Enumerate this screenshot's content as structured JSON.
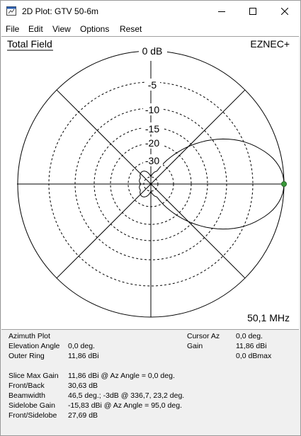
{
  "window": {
    "title": "2D Plot: GTV 50-6m"
  },
  "menu": [
    "File",
    "Edit",
    "View",
    "Options",
    "Reset"
  ],
  "plot": {
    "field_label": "Total Field",
    "brand": "EZNEC+",
    "frequency": "50,1 MHz",
    "ring_labels": [
      "0 dB",
      "-5",
      "-10",
      "-15",
      "-20",
      "-30"
    ]
  },
  "info": {
    "plot_type": "Azimuth Plot",
    "elevation_label": "Elevation Angle",
    "elevation_value": "0,0 deg.",
    "outer_ring_label": "Outer Ring",
    "outer_ring_value": "11,86 dBi",
    "cursor_az_label": "Cursor Az",
    "cursor_az_value": "0,0 deg.",
    "gain_label": "Gain",
    "gain_dbi": "11,86 dBi",
    "gain_dbmax": "0,0 dBmax",
    "slice_max_label": "Slice Max Gain",
    "slice_max_value": "11,86 dBi @ Az Angle = 0,0 deg.",
    "front_back_label": "Front/Back",
    "front_back_value": "30,63 dB",
    "beamwidth_label": "Beamwidth",
    "beamwidth_value": "46,5 deg.; -3dB @ 336,7, 23,2 deg.",
    "sidelobe_gain_label": "Sidelobe Gain",
    "sidelobe_gain_value": "-15,83 dBi @ Az Angle = 95,0 deg.",
    "front_sidelobe_label": "Front/Sidelobe",
    "front_sidelobe_value": "27,69 dB"
  },
  "colors": {
    "trace": "#000000",
    "grid": "#000000",
    "cursor": "#3a9a3a"
  },
  "icons": {
    "app": "plot-window-icon",
    "minimize": "minimize-icon",
    "maximize": "maximize-icon",
    "close": "close-icon"
  }
}
